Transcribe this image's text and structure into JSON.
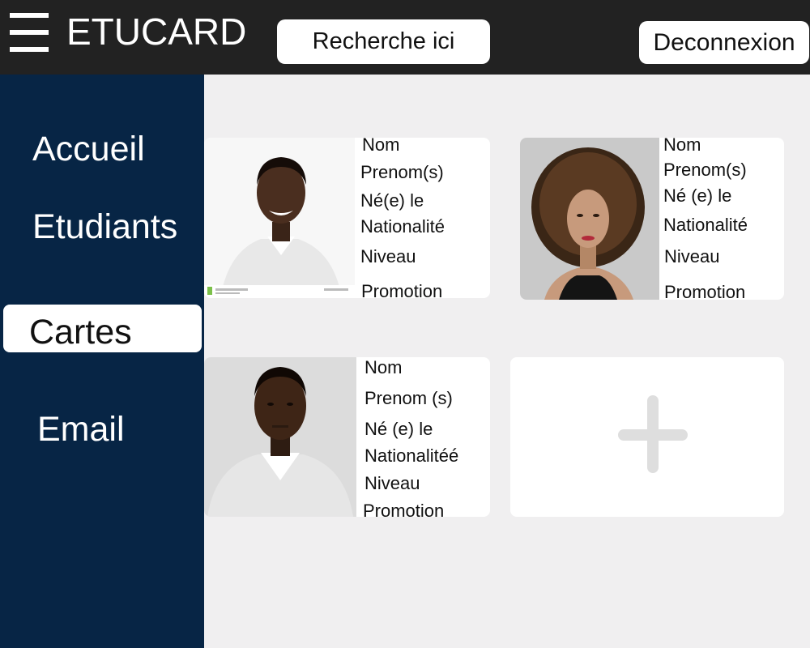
{
  "header": {
    "app_title": "ETUCARD",
    "search_placeholder": "Recherche ici",
    "logout_label": "Deconnexion"
  },
  "sidebar": {
    "items": [
      {
        "label": "Accueil",
        "active": false
      },
      {
        "label": "Etudiants",
        "active": false
      },
      {
        "label": "Cartes",
        "active": true
      },
      {
        "label": "Email",
        "active": false
      }
    ]
  },
  "cards": [
    {
      "photo": "student-photo-man-smiling",
      "fields": [
        "Nom",
        "Prenom(s)",
        "Né(e) le",
        "Nationalité",
        "Niveau",
        "Promotion"
      ]
    },
    {
      "photo": "student-photo-woman-curly-hair",
      "fields": [
        "Nom",
        "Prenom(s)",
        "Né (e) le",
        "Nationalité",
        "Niveau",
        "Promotion"
      ]
    },
    {
      "photo": "student-photo-man-serious",
      "fields": [
        "Nom",
        "Prenom (s)",
        "Né (e) le",
        "Nationalitéé",
        "Niveau",
        "Promotion"
      ]
    }
  ],
  "add_card": {
    "icon": "plus-icon"
  },
  "colors": {
    "topbar": "#222222",
    "sidebar": "#072545",
    "content_bg": "#f0eff0",
    "card_bg": "#ffffff",
    "plus_icon": "#dedede"
  }
}
